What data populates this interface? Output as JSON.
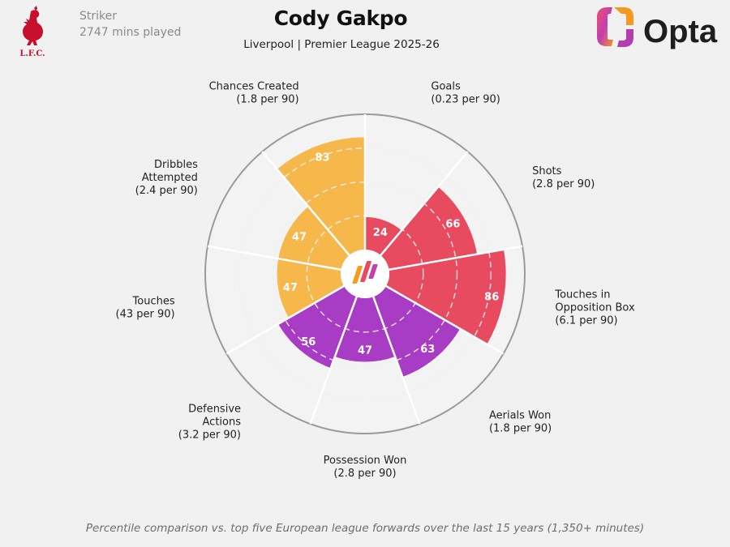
{
  "header": {
    "player_name": "Cody Gakpo",
    "position": "Striker",
    "minutes": "2747 mins played",
    "competition": "Liverpool | Premier League 2025-26",
    "club_logo_text": "L.F.C.",
    "brand": "Opta"
  },
  "footer": {
    "note": "Percentile comparison vs. top five European league forwards over the last 15 years (1,350+ minutes)"
  },
  "colors": {
    "attacking": "#e84a5f",
    "possession": "#a83cc4",
    "creative": "#f6b84a",
    "background": "#f2f1f1"
  },
  "chart_data": {
    "type": "radial-bar",
    "scale": [
      0,
      100
    ],
    "categories": [
      {
        "label": [
          "Goals"
        ],
        "per90": "(0.23 per 90)",
        "percentile": 24,
        "group": "attacking"
      },
      {
        "label": [
          "Shots"
        ],
        "per90": "(2.8 per 90)",
        "percentile": 66,
        "group": "attacking"
      },
      {
        "label": [
          "Touches in",
          "Opposition Box"
        ],
        "per90": "(6.1 per 90)",
        "percentile": 86,
        "group": "attacking"
      },
      {
        "label": [
          "Aerials Won"
        ],
        "per90": "(1.8 per 90)",
        "percentile": 63,
        "group": "possession"
      },
      {
        "label": [
          "Possession Won"
        ],
        "per90": "(2.8 per 90)",
        "percentile": 47,
        "group": "possession"
      },
      {
        "label": [
          "Defensive",
          "Actions"
        ],
        "per90": "(3.2 per 90)",
        "percentile": 56,
        "group": "possession"
      },
      {
        "label": [
          "Touches"
        ],
        "per90": "(43 per 90)",
        "percentile": 47,
        "group": "creative"
      },
      {
        "label": [
          "Dribbles",
          "Attempted"
        ],
        "per90": "(2.4 per 90)",
        "percentile": 47,
        "group": "creative"
      },
      {
        "label": [
          "Chances Created"
        ],
        "per90": "(1.8 per 90)",
        "percentile": 83,
        "group": "creative"
      }
    ]
  }
}
